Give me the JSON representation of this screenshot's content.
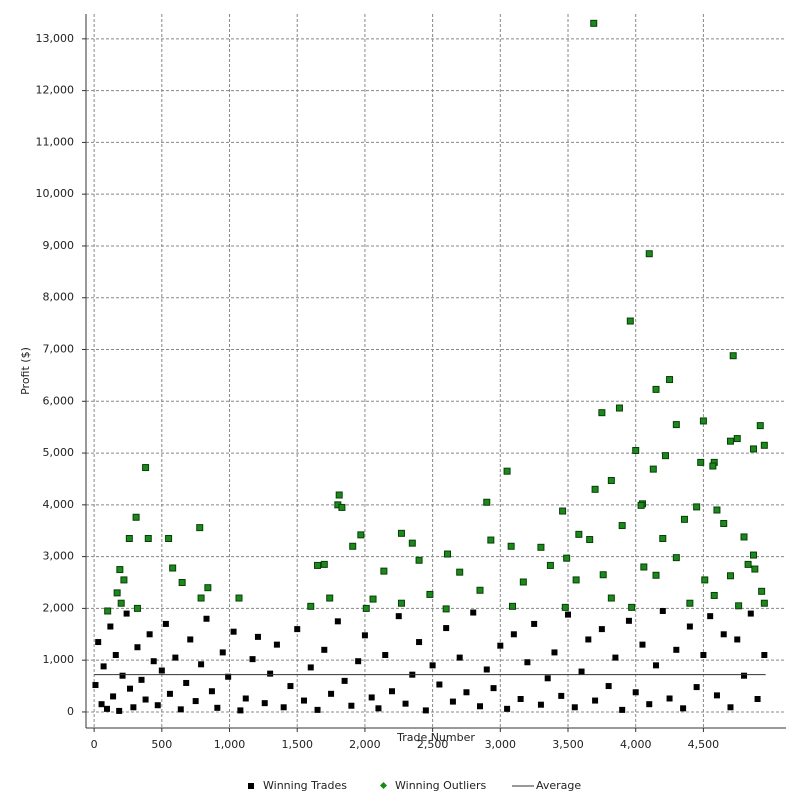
{
  "chart_data": {
    "type": "scatter",
    "x_label": "Trade Number",
    "y_label": "Profit ($)",
    "xlim": [
      -60,
      5110
    ],
    "ylim": [
      -310,
      13480
    ],
    "grid": true,
    "legend": "bottom",
    "xticks": [
      0,
      500,
      {
        "value": 1000,
        "label": "1,000"
      },
      {
        "value": 1500,
        "label": "1,500"
      },
      {
        "value": 2000,
        "label": "2,000"
      },
      {
        "value": 2500,
        "label": "2,500"
      },
      {
        "value": 3000,
        "label": "3,000"
      },
      {
        "value": 3500,
        "label": "3,500"
      },
      {
        "value": 4000,
        "label": "4,000"
      },
      {
        "value": 4500,
        "label": "4,500"
      }
    ],
    "yticks": [
      0,
      {
        "value": 1000,
        "label": "1,000"
      },
      {
        "value": 2000,
        "label": "2,000"
      },
      {
        "value": 3000,
        "label": "3,000"
      },
      {
        "value": 4000,
        "label": "4,000"
      },
      {
        "value": 5000,
        "label": "5,000"
      },
      {
        "value": 6000,
        "label": "6,000"
      },
      {
        "value": 7000,
        "label": "7,000"
      },
      {
        "value": 8000,
        "label": "8,000"
      },
      {
        "value": 9000,
        "label": "9,000"
      },
      {
        "value": 10000,
        "label": "10,000"
      },
      {
        "value": 11000,
        "label": "11,000"
      },
      {
        "value": 12000,
        "label": "12,000"
      },
      {
        "value": 13000,
        "label": "13,000"
      }
    ],
    "series": [
      {
        "name": "Winning Trades",
        "type": "scatter",
        "marker": "square",
        "color": "#000000",
        "x": [
          10,
          30,
          55,
          70,
          95,
          120,
          140,
          160,
          185,
          210,
          240,
          265,
          290,
          320,
          350,
          380,
          410,
          440,
          470,
          500,
          530,
          560,
          600,
          640,
          680,
          710,
          750,
          790,
          830,
          870,
          910,
          950,
          990,
          1030,
          1080,
          1120,
          1170,
          1210,
          1260,
          1300,
          1350,
          1400,
          1450,
          1500,
          1550,
          1600,
          1650,
          1700,
          1750,
          1800,
          1850,
          1900,
          1950,
          2000,
          2050,
          2100,
          2150,
          2200,
          2250,
          2300,
          2350,
          2400,
          2450,
          2500,
          2550,
          2600,
          2650,
          2700,
          2750,
          2800,
          2850,
          2900,
          2950,
          3000,
          3050,
          3100,
          3150,
          3200,
          3250,
          3300,
          3350,
          3400,
          3450,
          3500,
          3550,
          3600,
          3650,
          3700,
          3750,
          3800,
          3850,
          3900,
          3950,
          4000,
          4050,
          4100,
          4150,
          4200,
          4250,
          4300,
          4350,
          4400,
          4450,
          4500,
          4550,
          4600,
          4650,
          4700,
          4750,
          4800,
          4850,
          4900,
          4950
        ],
        "values": [
          520,
          1350,
          150,
          880,
          60,
          1650,
          300,
          1100,
          20,
          700,
          1900,
          450,
          90,
          1250,
          620,
          240,
          1500,
          980,
          130,
          800,
          1700,
          350,
          1050,
          50,
          560,
          1400,
          210,
          920,
          1800,
          400,
          80,
          1150,
          680,
          1550,
          30,
          260,
          1020,
          1450,
          170,
          740,
          1300,
          90,
          500,
          1600,
          220,
          860,
          40,
          1200,
          350,
          1750,
          600,
          120,
          980,
          1480,
          280,
          70,
          1100,
          400,
          1850,
          160,
          720,
          1350,
          30,
          900,
          530,
          1620,
          200,
          1050,
          380,
          1920,
          110,
          820,
          460,
          1280,
          60,
          1500,
          250,
          960,
          1700,
          140,
          650,
          1150,
          310,
          1880,
          90,
          780,
          1400,
          220,
          1600,
          500,
          1050,
          40,
          1760,
          380,
          1300,
          150,
          900,
          1950,
          260,
          1200,
          70,
          1650,
          480,
          1100,
          1850,
          320,
          1500,
          90,
          1400,
          700,
          1900,
          250,
          1100
        ]
      },
      {
        "name": "Winning Outliers",
        "type": "scatter",
        "marker": "diamond",
        "color": "#1a8a1a",
        "x": [
          3690,
          4100,
          3960,
          4720,
          4250,
          4150,
          3880,
          3750,
          4500,
          4920,
          4300,
          4870,
          4950,
          4000,
          4750,
          4700,
          4480,
          4580,
          4570,
          4220,
          4130,
          380,
          3050,
          4050,
          1810,
          1800,
          1830,
          2900,
          310,
          190,
          780,
          260,
          400,
          550,
          1910,
          1970,
          2270,
          2350,
          2930,
          3080,
          3300,
          3460,
          3580,
          3660,
          3900,
          3700,
          3820,
          4040,
          4200,
          4360,
          4450,
          4600,
          4650,
          4800,
          4870,
          4880,
          4950,
          1700,
          1650,
          580,
          650,
          170,
          200,
          320,
          100,
          220,
          840,
          790,
          1070,
          1600,
          1740,
          2060,
          2140,
          2270,
          2480,
          2610,
          2700,
          2850,
          3170,
          3370,
          3490,
          3560,
          3760,
          3820,
          3970,
          4060,
          4150,
          4300,
          4400,
          4510,
          4580,
          4700,
          4760,
          4830,
          4930,
          3480,
          3090,
          2010,
          2400,
          2600
        ],
        "values": [
          13300,
          8850,
          7550,
          6880,
          6420,
          6230,
          5870,
          5780,
          5620,
          5530,
          5550,
          5080,
          5150,
          5050,
          5280,
          5230,
          4820,
          4820,
          4750,
          4950,
          4690,
          4720,
          4650,
          4020,
          4190,
          4000,
          3950,
          4050,
          3760,
          2750,
          3560,
          3350,
          3350,
          3350,
          3200,
          3420,
          3450,
          3260,
          3320,
          3200,
          3180,
          3880,
          3430,
          3330,
          3600,
          4300,
          4470,
          3990,
          3350,
          3720,
          3960,
          3900,
          3640,
          3380,
          3030,
          2760,
          2100,
          2850,
          2830,
          2780,
          2500,
          2300,
          2100,
          2000,
          1950,
          2550,
          2400,
          2200,
          2200,
          2040,
          2200,
          2180,
          2720,
          2100,
          2270,
          3050,
          2700,
          2350,
          2510,
          2830,
          2970,
          2550,
          2650,
          2200,
          2020,
          2800,
          2640,
          2980,
          2100,
          2550,
          2250,
          2630,
          2050,
          2850,
          2330,
          2020,
          2040,
          2000,
          2930,
          1990
        ]
      },
      {
        "name": "Average",
        "type": "line",
        "marker": "line",
        "color": "#333333",
        "x": [
          0,
          4960
        ],
        "values": [
          720,
          720
        ]
      }
    ]
  }
}
